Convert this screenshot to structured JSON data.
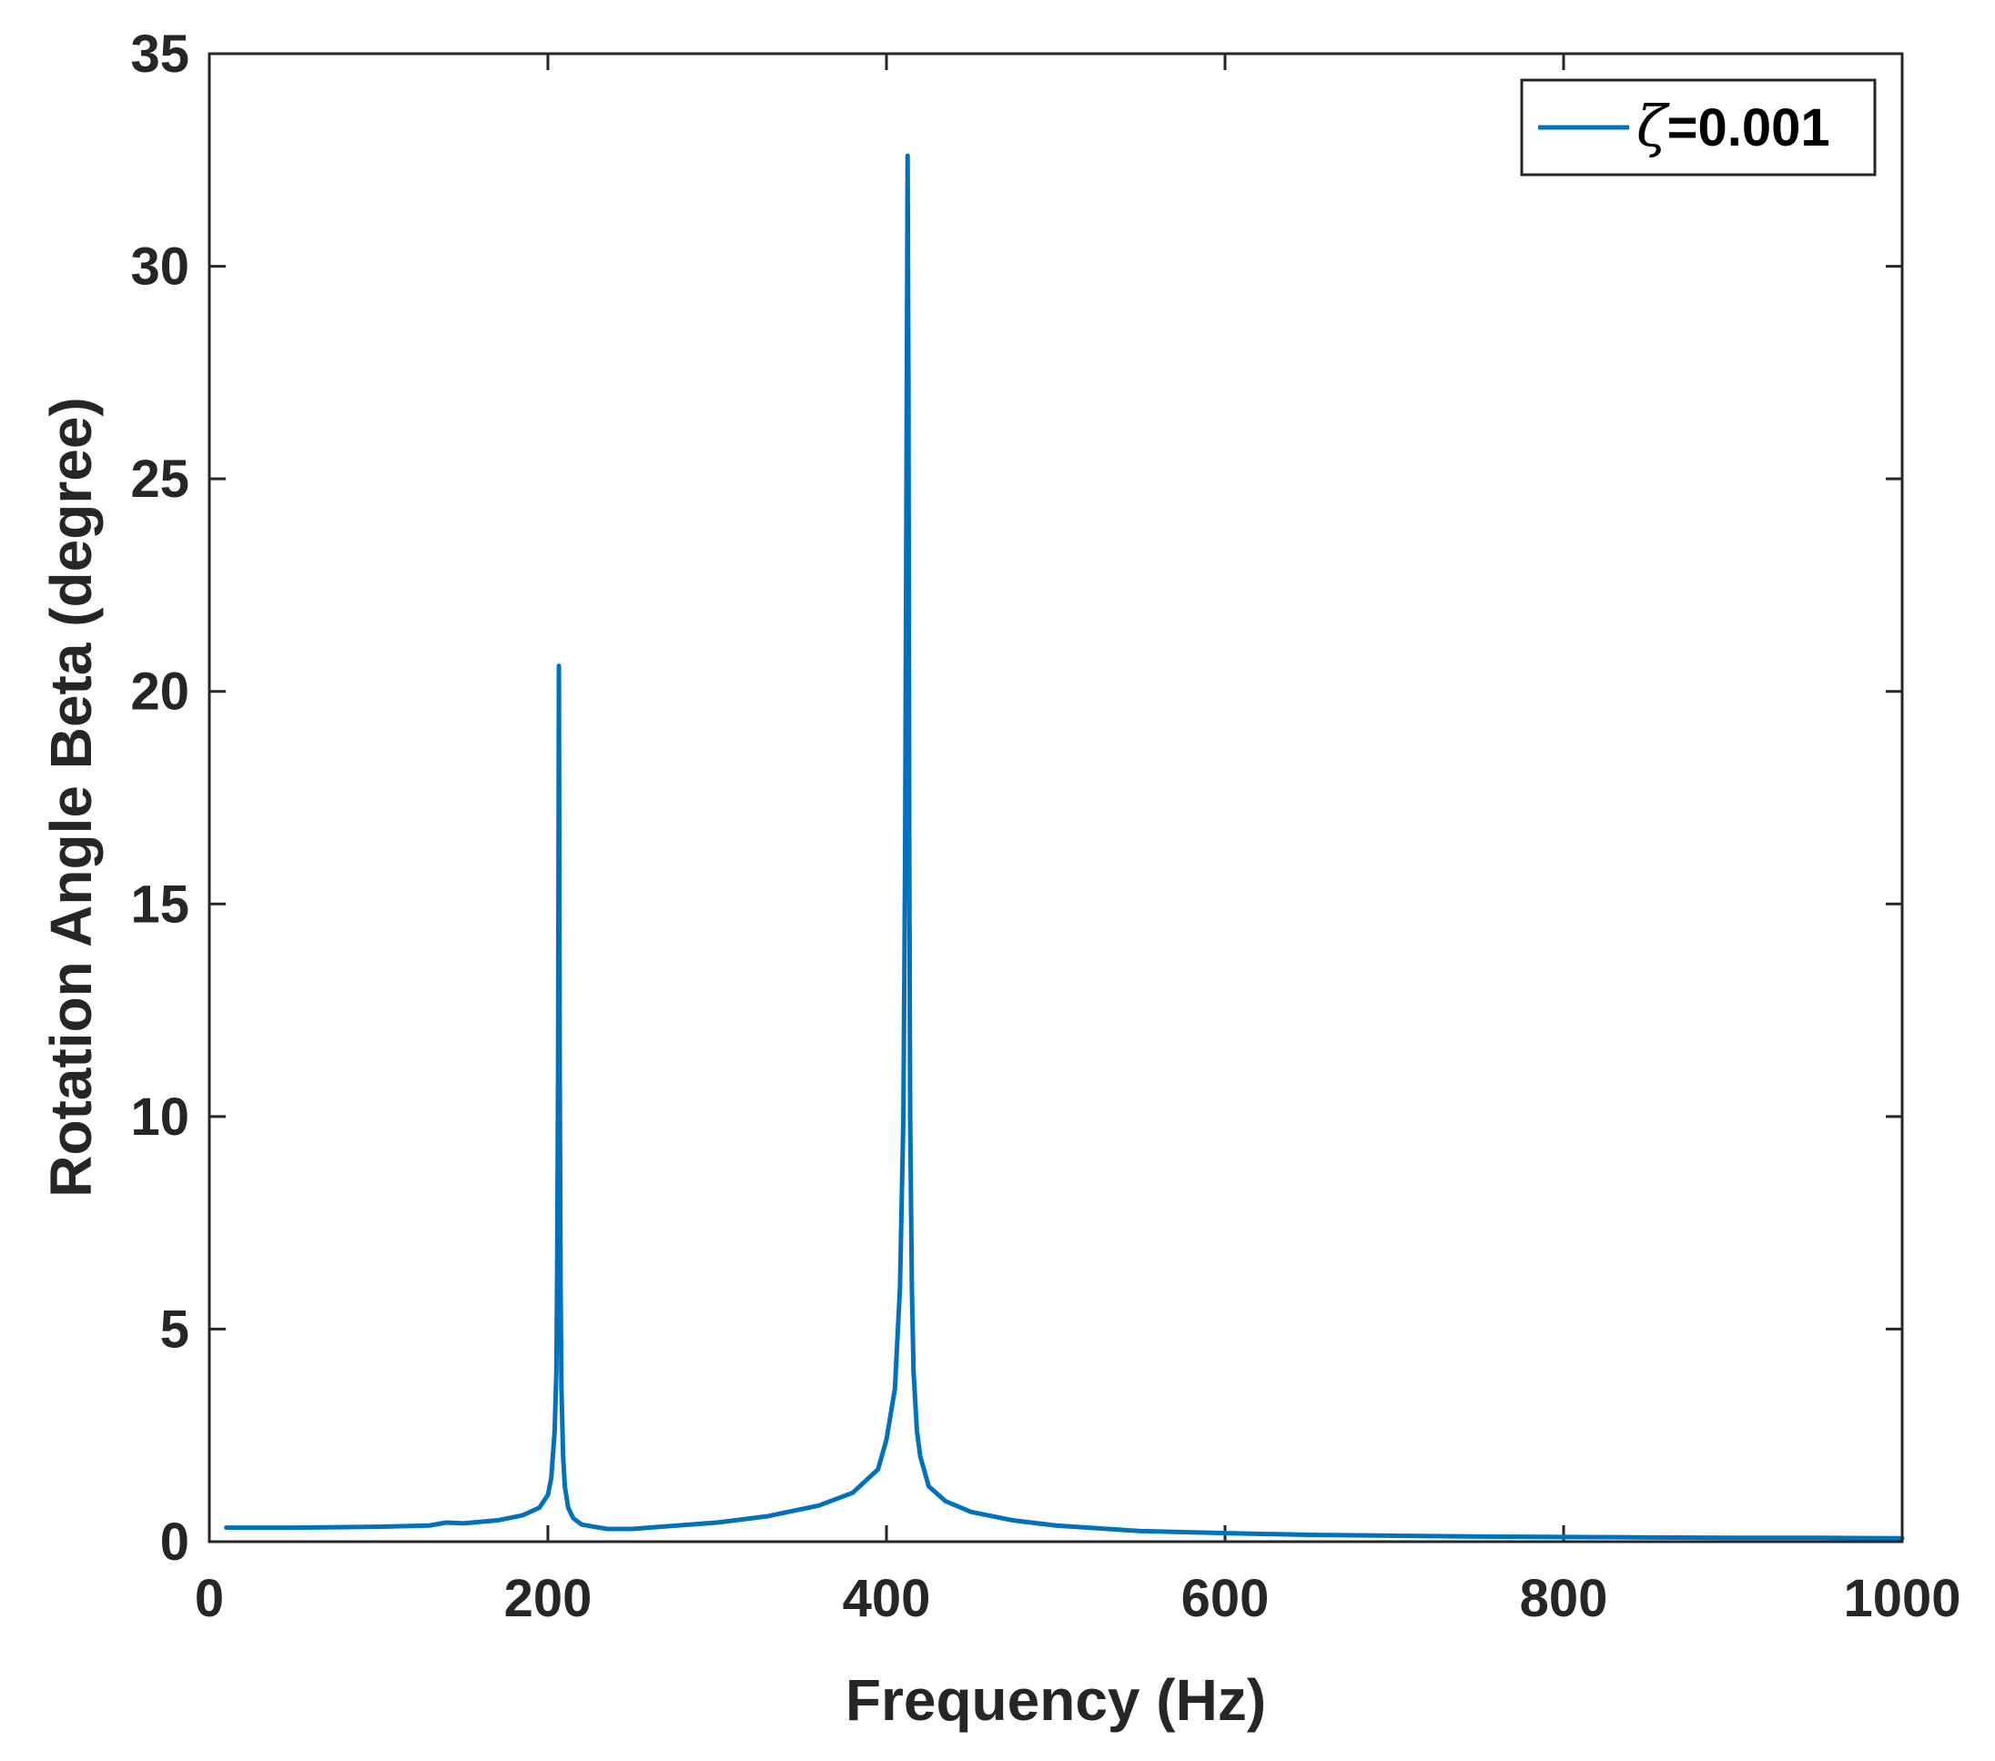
{
  "chart_data": {
    "type": "line",
    "title": "",
    "xlabel": "Frequency (Hz)",
    "ylabel": "Rotation Angle Beta (degree)",
    "xlim": [
      0,
      1000
    ],
    "ylim": [
      0,
      35
    ],
    "x_ticks": [
      0,
      200,
      400,
      600,
      800,
      1000
    ],
    "y_ticks": [
      0,
      5,
      10,
      15,
      20,
      25,
      30,
      35
    ],
    "x_tick_labels": [
      "0",
      "200",
      "400",
      "600",
      "800",
      "1000"
    ],
    "y_tick_labels": [
      "0",
      "5",
      "10",
      "15",
      "20",
      "25",
      "30",
      "35"
    ],
    "grid": false,
    "legend_position": "top-right",
    "colors": {
      "series": "#0072BD",
      "axes": "#262626"
    },
    "series": [
      {
        "name": "ζ=0.001",
        "legend_symbol": "ζ",
        "legend_value": "=0.001",
        "x": [
          10,
          50,
          100,
          130,
          140,
          150,
          170,
          185,
          195,
          200,
          202,
          204,
          205,
          205.5,
          206,
          206.5,
          207,
          207.5,
          208,
          209,
          210,
          212,
          215,
          220,
          235,
          250,
          270,
          300,
          330,
          360,
          380,
          395,
          400,
          405,
          408,
          410,
          411,
          412,
          412.5,
          413,
          413.5,
          414,
          415,
          416,
          418,
          420,
          425,
          435,
          450,
          475,
          500,
          550,
          600,
          650,
          700,
          750,
          800,
          850,
          900,
          950,
          1000
        ],
        "y": [
          0.33,
          0.33,
          0.35,
          0.38,
          0.45,
          0.43,
          0.5,
          0.62,
          0.8,
          1.1,
          1.5,
          2.6,
          4.0,
          6.5,
          11.0,
          20.6,
          11.0,
          6.0,
          3.6,
          2.0,
          1.3,
          0.8,
          0.55,
          0.4,
          0.3,
          0.3,
          0.36,
          0.45,
          0.6,
          0.85,
          1.15,
          1.7,
          2.4,
          3.6,
          6.0,
          10.0,
          16.0,
          27.0,
          32.6,
          27.0,
          16.0,
          10.0,
          6.0,
          4.0,
          2.6,
          2.0,
          1.3,
          0.95,
          0.7,
          0.5,
          0.38,
          0.25,
          0.2,
          0.16,
          0.14,
          0.12,
          0.11,
          0.1,
          0.09,
          0.09,
          0.08
        ]
      }
    ]
  }
}
